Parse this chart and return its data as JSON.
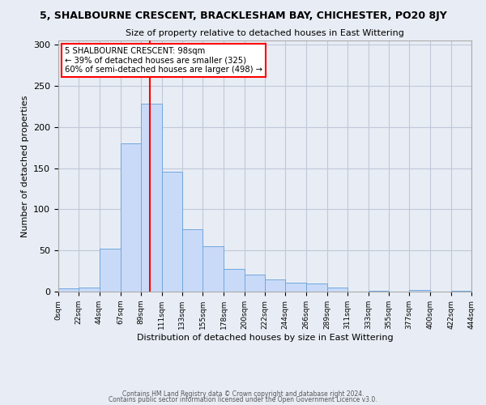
{
  "title1": "5, SHALBOURNE CRESCENT, BRACKLESHAM BAY, CHICHESTER, PO20 8JY",
  "title2": "Size of property relative to detached houses in East Wittering",
  "xlabel": "Distribution of detached houses by size in East Wittering",
  "ylabel": "Number of detached properties",
  "footnote1": "Contains HM Land Registry data © Crown copyright and database right 2024.",
  "footnote2": "Contains public sector information licensed under the Open Government Licence v3.0.",
  "bin_edges": [
    0,
    22,
    44,
    67,
    89,
    111,
    133,
    155,
    178,
    200,
    222,
    244,
    266,
    289,
    311,
    333,
    355,
    377,
    400,
    422,
    444
  ],
  "bin_labels": [
    "0sqm",
    "22sqm",
    "44sqm",
    "67sqm",
    "89sqm",
    "111sqm",
    "133sqm",
    "155sqm",
    "178sqm",
    "200sqm",
    "222sqm",
    "244sqm",
    "266sqm",
    "289sqm",
    "311sqm",
    "333sqm",
    "355sqm",
    "377sqm",
    "400sqm",
    "422sqm",
    "444sqm"
  ],
  "counts": [
    4,
    5,
    52,
    180,
    228,
    146,
    76,
    55,
    28,
    21,
    15,
    11,
    10,
    5,
    0,
    1,
    0,
    2,
    0,
    1
  ],
  "bar_facecolor": "#c9daf8",
  "bar_edgecolor": "#6fa8dc",
  "grid_color": "#c0c8d8",
  "background_color": "#e8edf5",
  "vline_x": 98,
  "vline_color": "red",
  "annotation_line1": "5 SHALBOURNE CRESCENT: 98sqm",
  "annotation_line2": "← 39% of detached houses are smaller (325)",
  "annotation_line3": "60% of semi-detached houses are larger (498) →",
  "ylim": [
    0,
    305
  ],
  "yticks": [
    0,
    50,
    100,
    150,
    200,
    250,
    300
  ]
}
